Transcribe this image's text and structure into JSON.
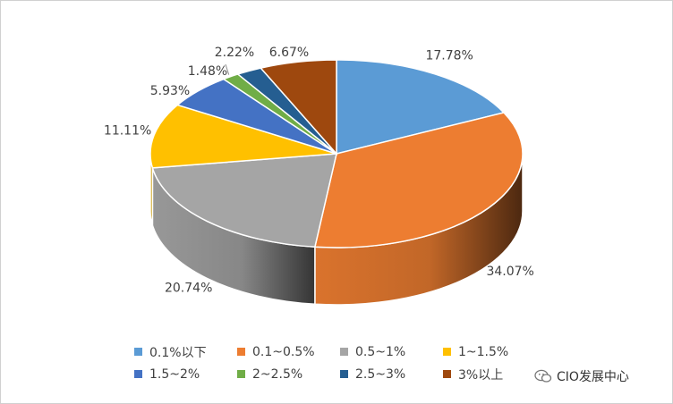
{
  "chart_data": {
    "type": "pie",
    "style": "3d",
    "title": "",
    "categories": [
      "0.1%以下",
      "0.1~0.5%",
      "0.5~1%",
      "1~1.5%",
      "1.5~2%",
      "2~2.5%",
      "2.5~3%",
      "3%以上"
    ],
    "values": [
      17.78,
      34.07,
      20.74,
      11.11,
      5.93,
      1.48,
      2.22,
      6.67
    ],
    "data_labels": [
      "17.78%",
      "34.07%",
      "20.74%",
      "11.11%",
      "5.93%",
      "1.48%",
      "2.22%",
      "6.67%"
    ],
    "colors": [
      "#5B9BD5",
      "#ED7D31",
      "#A5A5A5",
      "#FFC000",
      "#4472C4",
      "#70AD47",
      "#255E91",
      "#9E480E"
    ],
    "legend_position": "bottom"
  },
  "watermark": {
    "text": "CIO发展中心",
    "icon": "wechat-icon"
  }
}
